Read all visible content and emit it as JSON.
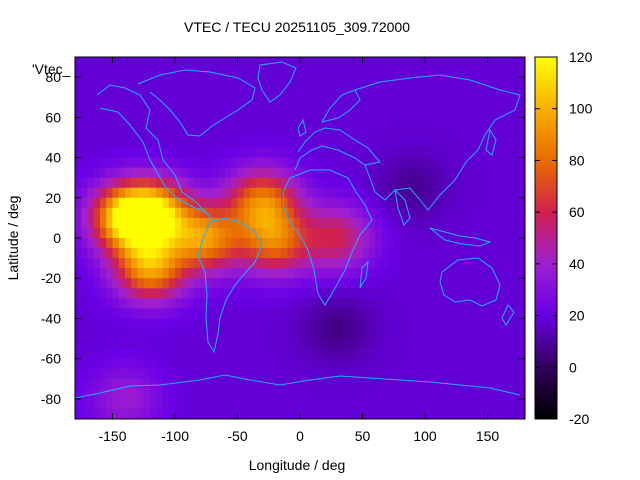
{
  "chart_data": {
    "type": "heatmap",
    "title": "VTEC / TECU 20251105_309.72000",
    "xlabel": "Longitude / deg",
    "ylabel": "Latitude / deg",
    "key_label": "'Vtec_",
    "xlim": [
      -180,
      180
    ],
    "ylim": [
      -90,
      90
    ],
    "xticks": [
      -150,
      -100,
      -50,
      0,
      50,
      100,
      150
    ],
    "yticks": [
      -80,
      -60,
      -40,
      -20,
      0,
      20,
      40,
      60,
      80
    ],
    "colorbar": {
      "min": -20,
      "max": 120,
      "ticks": [
        -20,
        0,
        20,
        40,
        60,
        80,
        100,
        120
      ]
    },
    "background_level_tecu": 18,
    "features": [
      {
        "name": "main-crest-peak",
        "lon": -138,
        "lat": 10,
        "value": 112
      },
      {
        "name": "crest-west",
        "lon": -115,
        "lat": 12,
        "value": 95
      },
      {
        "name": "southern-crest",
        "lon": -120,
        "lat": -15,
        "value": 92
      },
      {
        "name": "south-america-enhancement",
        "lon": -75,
        "lat": 0,
        "value": 88
      },
      {
        "name": "atlantic-north-lobe",
        "lon": -30,
        "lat": 18,
        "value": 82
      },
      {
        "name": "atlantic-south-lobe",
        "lon": -20,
        "lat": -2,
        "value": 76
      },
      {
        "name": "africa-tail",
        "lon": 30,
        "lat": 0,
        "value": 58
      },
      {
        "name": "europe-asia-low",
        "lon": 90,
        "lat": 25,
        "value": 8
      },
      {
        "name": "southern-ocean-low",
        "lon": 30,
        "lat": -45,
        "value": 6
      },
      {
        "name": "antarctic-pacific-patch",
        "lon": -140,
        "lat": -80,
        "value": 38
      }
    ]
  }
}
